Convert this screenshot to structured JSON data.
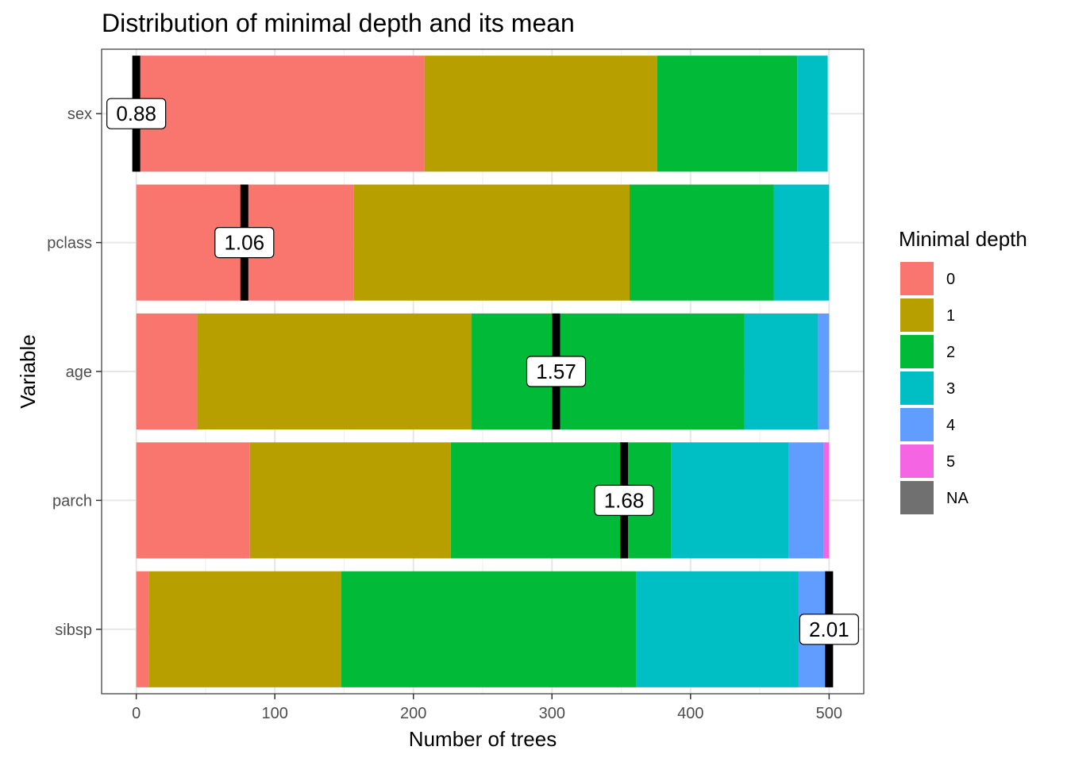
{
  "chart_data": {
    "type": "bar",
    "orientation": "horizontal",
    "stacked": true,
    "title": "Distribution of minimal depth and its mean",
    "xlabel": "Number of trees",
    "ylabel": "Variable",
    "xlim": [
      -25,
      525
    ],
    "xticks": [
      0,
      100,
      200,
      300,
      400,
      500
    ],
    "grid": true,
    "legend_position": "right",
    "legend_title": "Minimal depth",
    "categories": [
      "sex",
      "pclass",
      "age",
      "parch",
      "sibsp"
    ],
    "series": [
      {
        "name": "0",
        "color": "#F8766D",
        "values": [
          208,
          157,
          44,
          82,
          9
        ]
      },
      {
        "name": "1",
        "color": "#B79F00",
        "values": [
          168,
          199,
          198,
          145,
          139
        ]
      },
      {
        "name": "2",
        "color": "#00BA38",
        "values": [
          101,
          104,
          197,
          159,
          213
        ]
      },
      {
        "name": "3",
        "color": "#00BFC4",
        "values": [
          22,
          40,
          53,
          85,
          117
        ]
      },
      {
        "name": "4",
        "color": "#619CFF",
        "values": [
          0,
          0,
          8,
          25,
          21
        ]
      },
      {
        "name": "5",
        "color": "#F564E3",
        "values": [
          0,
          0,
          0,
          4,
          0
        ]
      },
      {
        "name": "NA",
        "color": "#707070",
        "values": [
          0,
          0,
          0,
          0,
          0
        ]
      }
    ],
    "mean_minimal_depth": {
      "labels": [
        "0.88",
        "1.06",
        "1.57",
        "1.68",
        "2.01"
      ],
      "positions": [
        0,
        78,
        303,
        352,
        500
      ]
    }
  }
}
